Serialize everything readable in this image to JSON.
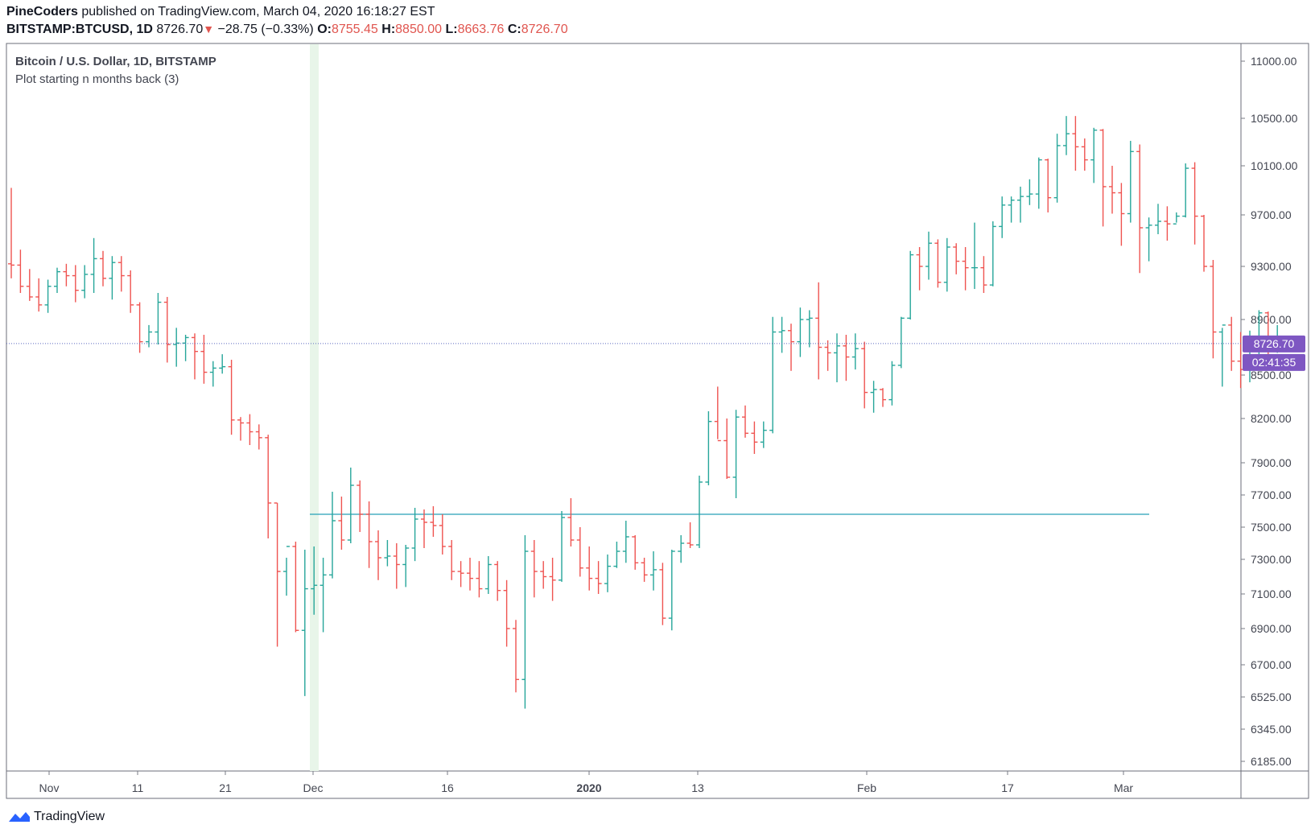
{
  "header": {
    "author": "PineCoders",
    "published_text": "published on TradingView.com, March 04, 2020 16:18:27 EST",
    "symbol": "BITSTAMP:BTCUSD, 1D",
    "last": "8726.70",
    "change": "−28.75 (−0.33%)",
    "o_label": "O:",
    "o_value": "8755.45",
    "h_label": "H:",
    "h_value": "8850.00",
    "l_label": "L:",
    "l_value": "8663.76",
    "c_label": "C:",
    "c_value": "8726.70"
  },
  "legend": {
    "title": "Bitcoin / U.S. Dollar, 1D, BITSTAMP",
    "indicator": "Plot starting n months back (3)"
  },
  "footer": {
    "brand": "TradingView"
  },
  "colors": {
    "up": "#26a69a",
    "down": "#ef5350",
    "hline": "#26a0b8",
    "highlight": "#e8f5e9",
    "price_tag": "#7e57c2",
    "axis": "#787b86"
  },
  "chart_data": {
    "type": "ohlc",
    "price_label": "8726.70",
    "countdown_label": "02:41:35",
    "indicator_level": 7580,
    "highlight_date": "Dec",
    "y_ticks": [
      "11000.00",
      "10500.00",
      "10100.00",
      "9700.00",
      "9300.00",
      "8900.00",
      "8500.00",
      "8200.00",
      "7900.00",
      "7700.00",
      "7500.00",
      "7300.00",
      "7100.00",
      "6900.00",
      "6700.00",
      "6525.00",
      "6345.00",
      "6185.00"
    ],
    "x_ticks": [
      "Nov",
      "11",
      "21",
      "Dec",
      "16",
      "2020",
      "13",
      "Feb",
      "17",
      "Mar"
    ],
    "bars": [
      [
        9320,
        9920,
        9210,
        9310
      ],
      [
        9310,
        9430,
        9100,
        9150
      ],
      [
        9150,
        9280,
        9040,
        9070
      ],
      [
        9070,
        9210,
        8960,
        9010
      ],
      [
        9010,
        9200,
        8950,
        9150
      ],
      [
        9150,
        9290,
        9100,
        9260
      ],
      [
        9260,
        9320,
        9150,
        9230
      ],
      [
        9230,
        9310,
        9030,
        9120
      ],
      [
        9120,
        9310,
        9060,
        9240
      ],
      [
        9240,
        9520,
        9100,
        9360
      ],
      [
        9360,
        9420,
        9150,
        9210
      ],
      [
        9210,
        9380,
        9050,
        9330
      ],
      [
        9330,
        9380,
        9110,
        9230
      ],
      [
        9230,
        9270,
        8950,
        9010
      ],
      [
        9010,
        9030,
        8660,
        8740
      ],
      [
        8740,
        8860,
        8700,
        8810
      ],
      [
        8810,
        9100,
        8720,
        9030
      ],
      [
        9030,
        9070,
        8590,
        8720
      ],
      [
        8720,
        8840,
        8560,
        8730
      ],
      [
        8730,
        8790,
        8600,
        8770
      ],
      [
        8770,
        8800,
        8470,
        8670
      ],
      [
        8670,
        8790,
        8440,
        8520
      ],
      [
        8520,
        8600,
        8420,
        8550
      ],
      [
        8550,
        8650,
        8510,
        8560
      ],
      [
        8560,
        8610,
        8090,
        8190
      ],
      [
        8190,
        8210,
        8050,
        8170
      ],
      [
        8170,
        8230,
        8020,
        8110
      ],
      [
        8110,
        8160,
        7990,
        8070
      ],
      [
        8070,
        8090,
        7430,
        7650
      ],
      [
        7650,
        7650,
        6800,
        7230
      ],
      [
        7230,
        7310,
        7090,
        7380
      ],
      [
        7380,
        7410,
        6880,
        6890
      ],
      [
        6890,
        7360,
        6530,
        7130
      ],
      [
        7130,
        7380,
        6980,
        7150
      ],
      [
        7150,
        7310,
        6880,
        7210
      ],
      [
        7210,
        7720,
        7190,
        7540
      ],
      [
        7540,
        7690,
        7360,
        7420
      ],
      [
        7420,
        7870,
        7400,
        7760
      ],
      [
        7760,
        7790,
        7470,
        7580
      ],
      [
        7580,
        7660,
        7250,
        7410
      ],
      [
        7410,
        7480,
        7180,
        7310
      ],
      [
        7310,
        7420,
        7260,
        7320
      ],
      [
        7320,
        7400,
        7130,
        7270
      ],
      [
        7270,
        7390,
        7140,
        7370
      ],
      [
        7370,
        7620,
        7290,
        7550
      ],
      [
        7550,
        7610,
        7370,
        7530
      ],
      [
        7530,
        7630,
        7440,
        7510
      ],
      [
        7510,
        7580,
        7330,
        7380
      ],
      [
        7380,
        7420,
        7180,
        7230
      ],
      [
        7230,
        7290,
        7140,
        7220
      ],
      [
        7220,
        7310,
        7120,
        7190
      ],
      [
        7190,
        7290,
        7080,
        7130
      ],
      [
        7130,
        7320,
        7100,
        7270
      ],
      [
        7270,
        7290,
        7060,
        7120
      ],
      [
        7120,
        7180,
        6800,
        6900
      ],
      [
        6900,
        6950,
        6550,
        6620
      ],
      [
        6620,
        7450,
        6460,
        7350
      ],
      [
        7350,
        7420,
        7080,
        7230
      ],
      [
        7230,
        7290,
        7130,
        7200
      ],
      [
        7200,
        7310,
        7060,
        7180
      ],
      [
        7180,
        7600,
        7170,
        7560
      ],
      [
        7560,
        7680,
        7380,
        7420
      ],
      [
        7420,
        7500,
        7200,
        7250
      ],
      [
        7250,
        7380,
        7120,
        7190
      ],
      [
        7190,
        7290,
        7100,
        7160
      ],
      [
        7160,
        7330,
        7110,
        7260
      ],
      [
        7260,
        7410,
        7250,
        7350
      ],
      [
        7350,
        7540,
        7280,
        7440
      ],
      [
        7440,
        7450,
        7240,
        7280
      ],
      [
        7280,
        7310,
        7170,
        7210
      ],
      [
        7210,
        7350,
        7120,
        7240
      ],
      [
        7240,
        7280,
        6920,
        6960
      ],
      [
        6960,
        7360,
        6890,
        7350
      ],
      [
        7350,
        7450,
        7280,
        7400
      ],
      [
        7400,
        7530,
        7370,
        7390
      ],
      [
        7390,
        7820,
        7370,
        7780
      ],
      [
        7780,
        8250,
        7760,
        8180
      ],
      [
        8180,
        8420,
        8060,
        8050
      ],
      [
        8050,
        8200,
        7800,
        7810
      ],
      [
        7810,
        8260,
        7680,
        8210
      ],
      [
        8210,
        8290,
        8070,
        8100
      ],
      [
        8100,
        8180,
        7960,
        8040
      ],
      [
        8040,
        8180,
        8000,
        8120
      ],
      [
        8120,
        8920,
        8100,
        8810
      ],
      [
        8810,
        8920,
        8660,
        8820
      ],
      [
        8820,
        8870,
        8530,
        8740
      ],
      [
        8740,
        8990,
        8630,
        8900
      ],
      [
        8900,
        8970,
        8700,
        8910
      ],
      [
        8910,
        9180,
        8470,
        8700
      ],
      [
        8700,
        8750,
        8530,
        8660
      ],
      [
        8660,
        8800,
        8450,
        8710
      ],
      [
        8710,
        8790,
        8460,
        8630
      ],
      [
        8630,
        8800,
        8540,
        8690
      ],
      [
        8690,
        8740,
        8270,
        8380
      ],
      [
        8380,
        8460,
        8240,
        8400
      ],
      [
        8400,
        8410,
        8280,
        8330
      ],
      [
        8330,
        8600,
        8290,
        8570
      ],
      [
        8570,
        8920,
        8550,
        8910
      ],
      [
        8910,
        9420,
        8900,
        9390
      ],
      [
        9390,
        9450,
        9120,
        9300
      ],
      [
        9300,
        9570,
        9200,
        9480
      ],
      [
        9480,
        9510,
        9140,
        9180
      ],
      [
        9180,
        9520,
        9110,
        9450
      ],
      [
        9450,
        9480,
        9240,
        9340
      ],
      [
        9340,
        9450,
        9120,
        9290
      ],
      [
        9290,
        9640,
        9130,
        9290
      ],
      [
        9290,
        9380,
        9100,
        9160
      ],
      [
        9160,
        9650,
        9150,
        9610
      ],
      [
        9610,
        9850,
        9520,
        9780
      ],
      [
        9780,
        9850,
        9640,
        9820
      ],
      [
        9820,
        9930,
        9640,
        9850
      ],
      [
        9850,
        9990,
        9780,
        9870
      ],
      [
        9870,
        10170,
        9750,
        10150
      ],
      [
        10150,
        10160,
        9720,
        9840
      ],
      [
        9840,
        10370,
        9800,
        10270
      ],
      [
        10270,
        10520,
        10190,
        10370
      ],
      [
        10370,
        10520,
        10060,
        10260
      ],
      [
        10260,
        10330,
        10060,
        10150
      ],
      [
        10150,
        10420,
        9960,
        10400
      ],
      [
        10400,
        10410,
        9610,
        9930
      ],
      [
        9930,
        10100,
        9710,
        9880
      ],
      [
        9880,
        9960,
        9460,
        9710
      ],
      [
        9710,
        10310,
        9640,
        10220
      ],
      [
        10220,
        10280,
        9250,
        9600
      ],
      [
        9600,
        9680,
        9340,
        9620
      ],
      [
        9620,
        9790,
        9550,
        9650
      ],
      [
        9650,
        9770,
        9500,
        9630
      ],
      [
        9630,
        9720,
        9640,
        9690
      ],
      [
        9690,
        10120,
        9680,
        10080
      ],
      [
        10080,
        10130,
        9470,
        9690
      ],
      [
        9690,
        9700,
        9260,
        9300
      ],
      [
        9300,
        9350,
        8620,
        8810
      ],
      [
        8810,
        8840,
        8420,
        8860
      ],
      [
        8860,
        8920,
        8530,
        8600
      ],
      [
        8600,
        8810,
        8410,
        8540
      ],
      [
        8540,
        8820,
        8450,
        8550
      ],
      [
        8550,
        8970,
        8550,
        8950
      ],
      [
        8950,
        8960,
        8630,
        8730
      ],
      [
        8730,
        8860,
        8660,
        8730
      ]
    ]
  }
}
